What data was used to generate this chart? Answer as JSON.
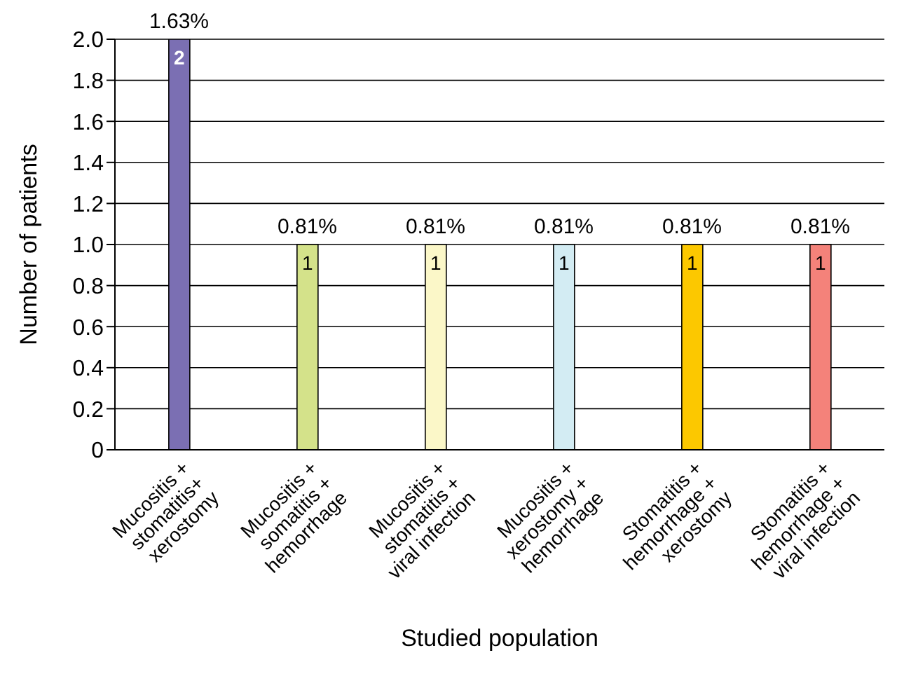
{
  "chart_data": {
    "type": "bar",
    "xlabel": "Studied population",
    "ylabel": "Number of patients",
    "categories": [
      "Mucositis +\nstomatitis+\nxerostomy",
      "Mucositis +\nsomatitis +\nhemorrhage",
      "Mucositis +\nstomatitis +\nviral infection",
      "Mucositis +\nxerostomy +\nhemorrhage",
      "Stomatitis +\nhemorrhage +\nxerostomy",
      "Stomatitis +\nhemorrhage +\nviral infection"
    ],
    "values": [
      2,
      1,
      1,
      1,
      1,
      1
    ],
    "colors": [
      "#7b6fb3",
      "#d4e28a",
      "#fbf7c8",
      "#d3ecf3",
      "#fcc800",
      "#f4827a"
    ],
    "ylim": [
      0,
      2
    ],
    "yticks": [
      0,
      0.2,
      0.4,
      0.6,
      0.8,
      {
        "value": 1,
        "label": "1.0"
      },
      1.2,
      1.4,
      1.6,
      1.8,
      {
        "value": 2,
        "label": "2.0"
      }
    ],
    "grid": "y",
    "data_labels": true,
    "annotations": [
      {
        "text": "1.63%",
        "x": "Mucositis +\nstomatitis+\nxerostomy",
        "y": 2
      },
      {
        "text": "0.81%",
        "x": "Mucositis +\nsomatitis +\nhemorrhage",
        "y": 1
      },
      {
        "text": "0.81%",
        "x": "Mucositis +\nstomatitis +\nviral infection",
        "y": 1
      },
      {
        "text": "0.81%",
        "x": "Mucositis +\nxerostomy +\nhemorrhage",
        "y": 1
      },
      {
        "text": "0.81%",
        "x": "Stomatitis +\nhemorrhage +\nxerostomy",
        "y": 1
      },
      {
        "text": "0.81%",
        "x": "Stomatitis +\nhemorrhage +\nviral infection",
        "y": 1
      }
    ]
  }
}
